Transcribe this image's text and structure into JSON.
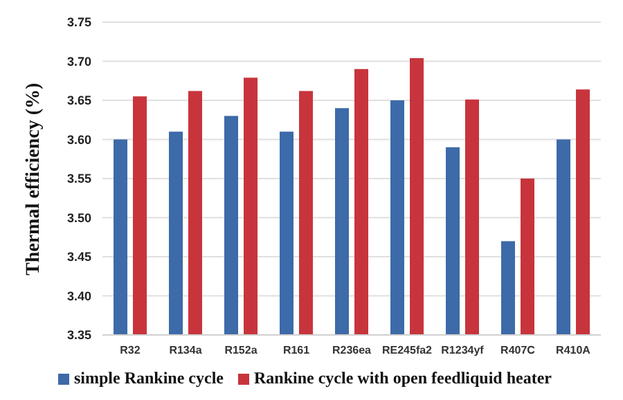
{
  "chart_data": {
    "type": "bar",
    "ylabel": "Thermal efficiency (%)",
    "categories": [
      "R32",
      "R134a",
      "R152a",
      "R161",
      "R236ea",
      "RE245fa2",
      "R1234yf",
      "R407C",
      "R410A"
    ],
    "series": [
      {
        "name": "simple Rankine cycle",
        "color": "#3d6aa8",
        "values": [
          3.6,
          3.61,
          3.63,
          3.61,
          3.64,
          3.65,
          3.59,
          3.47,
          3.6
        ]
      },
      {
        "name": "Rankine cycle with open feedliquid heater",
        "color": "#c8343c",
        "values": [
          3.655,
          3.662,
          3.679,
          3.662,
          3.69,
          3.704,
          3.651,
          3.55,
          3.664
        ]
      }
    ],
    "ylim": [
      3.35,
      3.75
    ],
    "yticks": [
      3.35,
      {
        "value": 3.4,
        "label": "3.40"
      },
      3.45,
      {
        "value": 3.5,
        "label": "3.50"
      },
      3.55,
      {
        "value": 3.6,
        "label": "3.60"
      },
      3.65,
      {
        "value": 3.7,
        "label": "3.70"
      },
      3.75
    ],
    "grid": "y",
    "legend": "bottom"
  }
}
